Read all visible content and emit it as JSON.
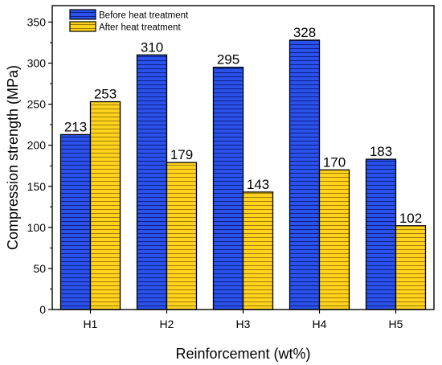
{
  "chart_data": {
    "type": "bar",
    "categories": [
      "H1",
      "H2",
      "H3",
      "H4",
      "H5"
    ],
    "series": [
      {
        "name": "Before heat treatment",
        "color": "#1f3fcf",
        "values": [
          213,
          310,
          295,
          328,
          183
        ]
      },
      {
        "name": "After heat treatment",
        "color": "#f5c518",
        "values": [
          253,
          179,
          143,
          170,
          102
        ]
      }
    ],
    "xlabel": "Reinforcement (wt%)",
    "ylabel": "Compression strength (MPa)",
    "ylim": [
      0,
      370
    ],
    "yticks": [
      0,
      50,
      100,
      150,
      200,
      250,
      300,
      350
    ],
    "grid": false,
    "legend_position": "top-left",
    "bar_fill_pattern": "horizontal-lines"
  }
}
